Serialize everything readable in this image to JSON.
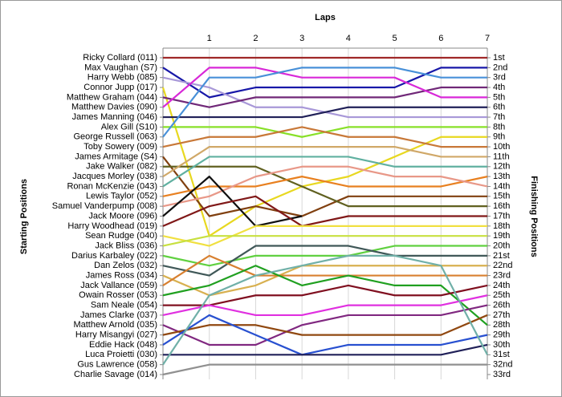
{
  "chart_data": {
    "type": "line",
    "title": "Laps",
    "y_label": "Starting Positions",
    "y2_label": "Finishing Positions",
    "y_inverted": true,
    "grid": true,
    "x": [
      0,
      1,
      2,
      3,
      4,
      5,
      6,
      7
    ],
    "xlim": [
      0,
      7
    ],
    "xticks": [
      1,
      2,
      3,
      4,
      5,
      6,
      7
    ],
    "ylim": [
      1,
      33
    ],
    "y2lim": [
      1,
      33
    ],
    "yticks": [
      {
        "value": 1,
        "label": "Ricky Collard (011)"
      },
      {
        "value": 2,
        "label": "Max Vaughan (S7)"
      },
      {
        "value": 3,
        "label": "Harry Webb (085)"
      },
      {
        "value": 4,
        "label": "Connor Jupp (017)"
      },
      {
        "value": 5,
        "label": "Matthew Graham (044)"
      },
      {
        "value": 6,
        "label": "Matthew Davies (090)"
      },
      {
        "value": 7,
        "label": "James Manning (046)"
      },
      {
        "value": 8,
        "label": "Alex Gill (S10)"
      },
      {
        "value": 9,
        "label": "George Russell (063)"
      },
      {
        "value": 10,
        "label": "Toby Sowery (009)"
      },
      {
        "value": 11,
        "label": "James Armitage (S4)"
      },
      {
        "value": 12,
        "label": "Jake Walker (082)"
      },
      {
        "value": 13,
        "label": "Jacques Morley (038)"
      },
      {
        "value": 14,
        "label": "Ronan McKenzie (043)"
      },
      {
        "value": 15,
        "label": "Lewis Taylor (052)"
      },
      {
        "value": 16,
        "label": "Samuel Vanderpump (008)"
      },
      {
        "value": 17,
        "label": "Jack Moore (096)"
      },
      {
        "value": 18,
        "label": "Harry Woodhead (019)"
      },
      {
        "value": 19,
        "label": "Sean Rudge (040)"
      },
      {
        "value": 20,
        "label": "Jack Bliss (036)"
      },
      {
        "value": 21,
        "label": "Darius Karbaley (022)"
      },
      {
        "value": 22,
        "label": "Dan Zelos (032)"
      },
      {
        "value": 23,
        "label": "James Ross (034)"
      },
      {
        "value": 24,
        "label": "Jack Vallance (059)"
      },
      {
        "value": 25,
        "label": "Owain Rosser (053)"
      },
      {
        "value": 26,
        "label": "Sam Neale (054)"
      },
      {
        "value": 27,
        "label": "James Clarke (037)"
      },
      {
        "value": 28,
        "label": "Matthew Arnold (035)"
      },
      {
        "value": 29,
        "label": "Harry Misangyi (027)"
      },
      {
        "value": 30,
        "label": "Eddie Hack (048)"
      },
      {
        "value": 31,
        "label": "Luca Proietti (030)"
      },
      {
        "value": 32,
        "label": "Gus Lawrence (058)"
      },
      {
        "value": 33,
        "label": "Charlie Savage (014)"
      }
    ],
    "y2ticks": [
      {
        "value": 1,
        "label": "1st"
      },
      {
        "value": 2,
        "label": "2nd"
      },
      {
        "value": 3,
        "label": "3rd"
      },
      {
        "value": 4,
        "label": "4th"
      },
      {
        "value": 5,
        "label": "5th"
      },
      {
        "value": 6,
        "label": "6th"
      },
      {
        "value": 7,
        "label": "7th"
      },
      {
        "value": 8,
        "label": "8th"
      },
      {
        "value": 9,
        "label": "9th"
      },
      {
        "value": 10,
        "label": "10th"
      },
      {
        "value": 11,
        "label": "11th"
      },
      {
        "value": 12,
        "label": "12th"
      },
      {
        "value": 13,
        "label": "13th"
      },
      {
        "value": 14,
        "label": "14th"
      },
      {
        "value": 15,
        "label": "15th"
      },
      {
        "value": 16,
        "label": "16th"
      },
      {
        "value": 17,
        "label": "17th"
      },
      {
        "value": 18,
        "label": "18th"
      },
      {
        "value": 19,
        "label": "19th"
      },
      {
        "value": 20,
        "label": "20th"
      },
      {
        "value": 21,
        "label": "21st"
      },
      {
        "value": 22,
        "label": "22nd"
      },
      {
        "value": 23,
        "label": "23rd"
      },
      {
        "value": 24,
        "label": "24th"
      },
      {
        "value": 25,
        "label": "25th"
      },
      {
        "value": 26,
        "label": "26th"
      },
      {
        "value": 27,
        "label": "27th"
      },
      {
        "value": 28,
        "label": "28th"
      },
      {
        "value": 29,
        "label": "29th"
      },
      {
        "value": 30,
        "label": "30th"
      },
      {
        "value": 31,
        "label": "31st"
      },
      {
        "value": 32,
        "label": "32nd"
      },
      {
        "value": 33,
        "label": "33rd"
      }
    ],
    "series": [
      {
        "name": "Ricky Collard (011)",
        "color": "#a02828",
        "values": [
          1,
          1,
          1,
          1,
          1,
          1,
          1,
          1
        ]
      },
      {
        "name": "Max Vaughan (S7)",
        "color": "#1818a8",
        "values": [
          2,
          5,
          4,
          4,
          4,
          4,
          2,
          2
        ]
      },
      {
        "name": "Harry Webb (085)",
        "color": "#a898d8",
        "values": [
          3,
          4,
          6,
          6,
          7,
          7,
          7,
          7
        ]
      },
      {
        "name": "Connor Jupp (017)",
        "color": "#e8d820",
        "values": [
          4,
          19,
          16,
          14,
          13,
          11,
          9,
          9
        ]
      },
      {
        "name": "Matthew Graham (044)",
        "color": "#702878",
        "values": [
          5,
          6,
          5,
          5,
          5,
          5,
          4,
          4
        ]
      },
      {
        "name": "Matthew Davies (090)",
        "color": "#d828d8",
        "values": [
          6,
          2,
          2,
          3,
          3,
          3,
          5,
          5
        ]
      },
      {
        "name": "James Manning (046)",
        "color": "#202058",
        "values": [
          7,
          7,
          7,
          7,
          6,
          6,
          6,
          6
        ]
      },
      {
        "name": "Alex Gill (S10)",
        "color": "#88e028",
        "values": [
          8,
          8,
          8,
          9,
          8,
          8,
          8,
          8
        ]
      },
      {
        "name": "George Russell (063)",
        "color": "#4890d8",
        "values": [
          9,
          3,
          3,
          2,
          2,
          2,
          3,
          3
        ]
      },
      {
        "name": "Toby Sowery (009)",
        "color": "#c87838",
        "values": [
          10,
          9,
          9,
          8,
          9,
          9,
          10,
          10
        ]
      },
      {
        "name": "James Armitage (S4)",
        "color": "#804010",
        "values": [
          11,
          17,
          16,
          17,
          15,
          15,
          15,
          15
        ]
      },
      {
        "name": "Jake Walker (082)",
        "color": "#606020",
        "values": [
          12,
          12,
          12,
          14,
          16,
          16,
          16,
          16
        ]
      },
      {
        "name": "Jacques Morley (038)",
        "color": "#d0a868",
        "values": [
          13,
          10,
          10,
          10,
          10,
          10,
          11,
          11
        ]
      },
      {
        "name": "Ronan McKenzie (043)",
        "color": "#60b0a0",
        "values": [
          14,
          11,
          11,
          11,
          11,
          12,
          12,
          12
        ]
      },
      {
        "name": "Lewis Taylor (052)",
        "color": "#e88020",
        "values": [
          15,
          14,
          14,
          13,
          14,
          14,
          14,
          13
        ]
      },
      {
        "name": "Samuel Vanderpump (008)",
        "color": "#e89888",
        "values": [
          16,
          15,
          13,
          12,
          12,
          13,
          13,
          14
        ]
      },
      {
        "name": "Jack Moore (096)",
        "color": "#101010",
        "values": [
          17,
          13,
          18,
          17,
          null,
          null,
          null,
          null
        ]
      },
      {
        "name": "Harry Woodhead (019)",
        "color": "#801818",
        "values": [
          18,
          16,
          15,
          18,
          17,
          17,
          17,
          17
        ]
      },
      {
        "name": "Sean Rudge (040)",
        "color": "#f0e040",
        "values": [
          19,
          20,
          18,
          18,
          18,
          18,
          18,
          18
        ]
      },
      {
        "name": "Jack Bliss (036)",
        "color": "#c8e040",
        "values": [
          20,
          19,
          19,
          19,
          19,
          19,
          19,
          19
        ]
      },
      {
        "name": "Darius Karbaley (022)",
        "color": "#60d040",
        "values": [
          21,
          22,
          21,
          21,
          21,
          20,
          20,
          20
        ]
      },
      {
        "name": "Dan Zelos (032)",
        "color": "#405858",
        "values": [
          22,
          23,
          20,
          20,
          20,
          21,
          21,
          21
        ]
      },
      {
        "name": "James Ross (034)",
        "color": "#d8b050",
        "values": [
          23,
          25,
          24,
          22,
          22,
          22,
          22,
          22
        ]
      },
      {
        "name": "Jack Vallance (059)",
        "color": "#d88030",
        "values": [
          24,
          21,
          23,
          23,
          23,
          23,
          23,
          23
        ]
      },
      {
        "name": "Owain Rosser (053)",
        "color": "#20a020",
        "values": [
          25,
          24,
          22,
          24,
          23,
          24,
          24,
          28
        ]
      },
      {
        "name": "Sam Neale (054)",
        "color": "#801020",
        "values": [
          26,
          26,
          25,
          25,
          24,
          25,
          25,
          24
        ]
      },
      {
        "name": "James Clarke (037)",
        "color": "#e030e0",
        "values": [
          27,
          26,
          27,
          27,
          26,
          26,
          26,
          25
        ]
      },
      {
        "name": "Matthew Arnold (035)",
        "color": "#802880",
        "values": [
          28,
          30,
          30,
          28,
          27,
          27,
          27,
          26
        ]
      },
      {
        "name": "Harry Misangyi (027)",
        "color": "#904810",
        "values": [
          29,
          28,
          28,
          29,
          29,
          29,
          29,
          27
        ]
      },
      {
        "name": "Eddie Hack (048)",
        "color": "#2850d0",
        "values": [
          30,
          27,
          29,
          31,
          30,
          30,
          30,
          29
        ]
      },
      {
        "name": "Luca Proietti (030)",
        "color": "#202058",
        "values": [
          31,
          31,
          31,
          31,
          31,
          31,
          31,
          30
        ]
      },
      {
        "name": "Gus Lawrence (058)",
        "color": "#70b0a8",
        "values": [
          32,
          25,
          23,
          22,
          21,
          21,
          22,
          31
        ]
      },
      {
        "name": "Charlie Savage (014)",
        "color": "#909090",
        "values": [
          33,
          32,
          32,
          32,
          32,
          32,
          32,
          32
        ]
      }
    ]
  }
}
